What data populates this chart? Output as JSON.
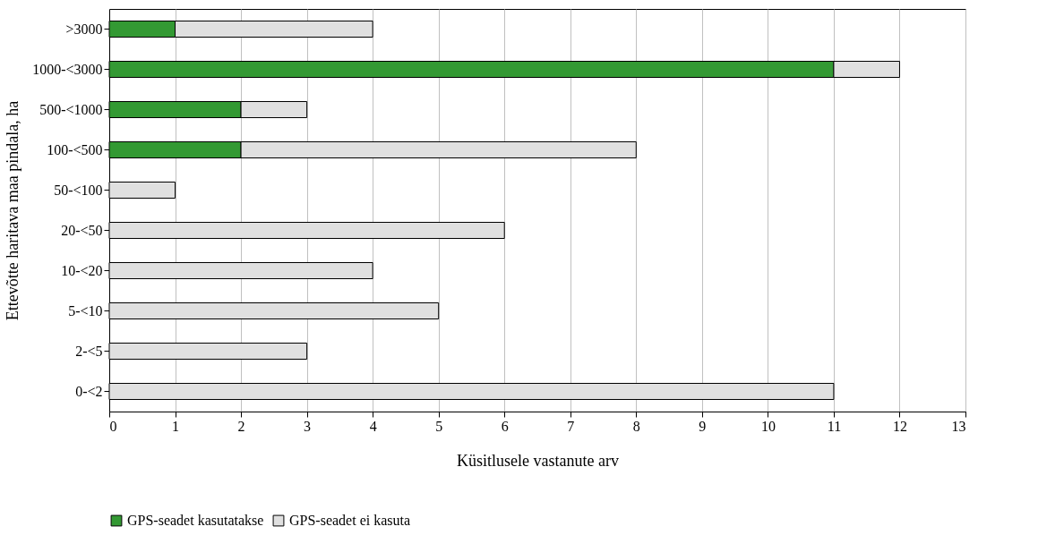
{
  "chart_data": {
    "type": "bar",
    "orientation": "horizontal",
    "stacked": true,
    "xlabel": "Küsitlusele vastanute arv",
    "ylabel": "Ettevõtte haritava maa pindala, ha",
    "categories": [
      ">3000",
      "1000-<3000",
      "500-<1000",
      "100-<500",
      "50-<100",
      "20-<50",
      "10-<20",
      "5-<10",
      "2-<5",
      "0-<2"
    ],
    "series": [
      {
        "name": "GPS-seadet kasutatakse",
        "color": "#339933",
        "values": [
          1,
          11,
          2,
          2,
          0,
          0,
          0,
          0,
          0,
          0
        ]
      },
      {
        "name": "GPS-seadet ei kasuta",
        "color": "#e0e0e0",
        "values": [
          3,
          1,
          1,
          6,
          1,
          6,
          4,
          5,
          3,
          11
        ]
      }
    ],
    "xlim": [
      0,
      13
    ],
    "xticks": [
      0,
      1,
      2,
      3,
      4,
      5,
      6,
      7,
      8,
      9,
      10,
      11,
      12,
      13
    ],
    "grid": "x",
    "legend": "bottom"
  }
}
